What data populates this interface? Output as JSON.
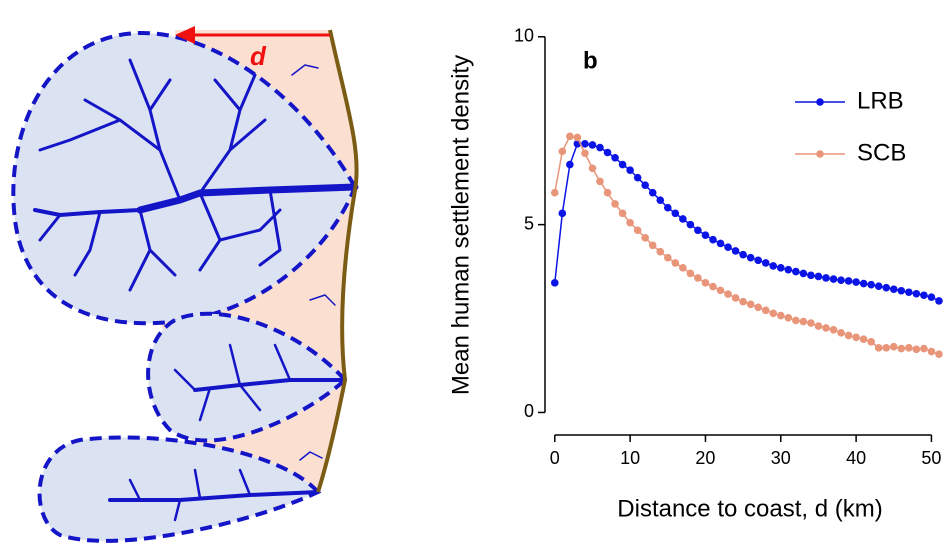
{
  "diagram": {
    "label": "d"
  },
  "chart_data": {
    "type": "line",
    "panel_label": "b",
    "xlabel": "Distance to coast, d (km)",
    "ylabel": "Mean human settlement density",
    "x": [
      0,
      1,
      2,
      3,
      4,
      5,
      6,
      7,
      8,
      9,
      10,
      11,
      12,
      13,
      14,
      15,
      16,
      17,
      18,
      19,
      20,
      21,
      22,
      23,
      24,
      25,
      26,
      27,
      28,
      29,
      30,
      31,
      32,
      33,
      34,
      35,
      36,
      37,
      38,
      39,
      40,
      41,
      42,
      43,
      44,
      45,
      46,
      47,
      48,
      49,
      50,
      51
    ],
    "series": [
      {
        "name": "LRB",
        "color": "#0a14e6",
        "values": [
          3.45,
          5.3,
          6.6,
          7.15,
          7.15,
          7.12,
          7.05,
          6.92,
          6.78,
          6.6,
          6.45,
          6.25,
          6.05,
          5.85,
          5.65,
          5.45,
          5.3,
          5.15,
          5.0,
          4.85,
          4.72,
          4.6,
          4.5,
          4.4,
          4.3,
          4.2,
          4.12,
          4.05,
          3.98,
          3.9,
          3.85,
          3.8,
          3.75,
          3.7,
          3.65,
          3.62,
          3.58,
          3.55,
          3.52,
          3.5,
          3.47,
          3.43,
          3.4,
          3.36,
          3.32,
          3.28,
          3.24,
          3.2,
          3.16,
          3.12,
          3.07,
          2.97
        ]
      },
      {
        "name": "SCB",
        "color": "#e8957a",
        "values": [
          5.85,
          6.95,
          7.35,
          7.32,
          6.9,
          6.5,
          6.15,
          5.85,
          5.55,
          5.3,
          5.05,
          4.85,
          4.65,
          4.45,
          4.28,
          4.12,
          3.98,
          3.85,
          3.7,
          3.58,
          3.45,
          3.35,
          3.25,
          3.15,
          3.05,
          2.95,
          2.88,
          2.8,
          2.72,
          2.64,
          2.58,
          2.52,
          2.45,
          2.42,
          2.38,
          2.3,
          2.25,
          2.2,
          2.12,
          2.05,
          2.0,
          1.95,
          1.88,
          1.72,
          1.72,
          1.75,
          1.7,
          1.72,
          1.68,
          1.7,
          1.62,
          1.55
        ]
      }
    ],
    "xlim": [
      -1.3,
      51.8
    ],
    "ylim": [
      -0.6,
      10.5
    ],
    "xticks": [
      0,
      10,
      20,
      30,
      40,
      50
    ],
    "yticks": [
      0,
      5,
      10
    ],
    "legend": "upper right"
  }
}
